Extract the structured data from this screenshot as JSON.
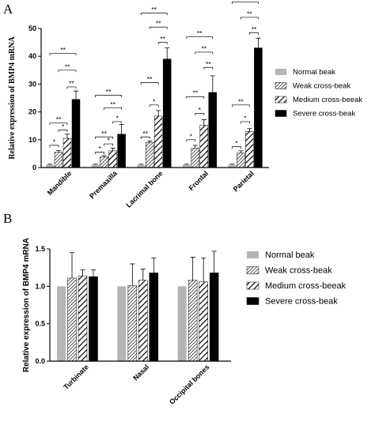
{
  "chart_data": [
    {
      "panel": "A",
      "type": "bar",
      "ylabel": "Relative expression of BMP4 mRNA",
      "ylim": [
        0,
        50
      ],
      "yticks": [
        0,
        10,
        20,
        30,
        40,
        50
      ],
      "categories": [
        "Mandible",
        "Premaxilla",
        "Lacrimal bone",
        "Frontal",
        "Parietal"
      ],
      "series": [
        {
          "name": "Normal beak",
          "values": [
            1,
            1,
            1,
            1,
            1
          ],
          "errors": [
            0.2,
            0.2,
            0.2,
            0.2,
            0.2
          ],
          "color": "#b4b4b4",
          "pattern": "solid-gray"
        },
        {
          "name": "Weak cross-beak",
          "values": [
            5.5,
            3.8,
            9.0,
            7.0,
            5.2
          ],
          "errors": [
            0.6,
            0.5,
            0.5,
            1.0,
            0.8
          ],
          "color": "#000000",
          "pattern": "hatch-dense"
        },
        {
          "name": "Medium cross-beeak",
          "values": [
            10.5,
            6.0,
            18.5,
            15.2,
            13.0
          ],
          "errors": [
            1.5,
            1.0,
            2.0,
            2.0,
            1.0
          ],
          "color": "#000000",
          "pattern": "hatch-wide"
        },
        {
          "name": "Severe cross-beak",
          "values": [
            24.5,
            12.0,
            39.0,
            27.0,
            43.0
          ],
          "errors": [
            3.0,
            3.5,
            4.0,
            6.0,
            3.5
          ],
          "color": "#000000",
          "pattern": "solid-black"
        }
      ],
      "significance": [
        {
          "cat": 0,
          "from": 0,
          "to": 1,
          "label": "*",
          "y": 8.0
        },
        {
          "cat": 0,
          "from": 1,
          "to": 2,
          "label": "*",
          "y": 13.5
        },
        {
          "cat": 0,
          "from": 0,
          "to": 2,
          "label": "**",
          "y": 16.0
        },
        {
          "cat": 0,
          "from": 2,
          "to": 3,
          "label": "**",
          "y": 29.0
        },
        {
          "cat": 0,
          "from": 1,
          "to": 3,
          "label": "**",
          "y": 35.0
        },
        {
          "cat": 0,
          "from": 0,
          "to": 3,
          "label": "**",
          "y": 41.0
        },
        {
          "cat": 1,
          "from": 0,
          "to": 1,
          "label": "*",
          "y": 5.5
        },
        {
          "cat": 1,
          "from": 1,
          "to": 2,
          "label": "*",
          "y": 8.5
        },
        {
          "cat": 1,
          "from": 0,
          "to": 2,
          "label": "**",
          "y": 11.0
        },
        {
          "cat": 1,
          "from": 2,
          "to": 3,
          "label": "*",
          "y": 16.5
        },
        {
          "cat": 1,
          "from": 1,
          "to": 3,
          "label": "**",
          "y": 21.5
        },
        {
          "cat": 1,
          "from": 0,
          "to": 3,
          "label": "**",
          "y": 26.0
        },
        {
          "cat": 2,
          "from": 0,
          "to": 1,
          "label": "**",
          "y": 11.0
        },
        {
          "cat": 2,
          "from": 1,
          "to": 2,
          "label": "*",
          "y": 22.5
        },
        {
          "cat": 2,
          "from": 0,
          "to": 2,
          "label": "**",
          "y": 30.5
        },
        {
          "cat": 2,
          "from": 2,
          "to": 3,
          "label": "**",
          "y": 45.0
        },
        {
          "cat": 2,
          "from": 1,
          "to": 3,
          "label": "**",
          "y": 50.5
        },
        {
          "cat": 2,
          "from": 0,
          "to": 3,
          "label": "**",
          "y": 55.5
        },
        {
          "cat": 3,
          "from": 0,
          "to": 1,
          "label": "*",
          "y": 10.0
        },
        {
          "cat": 3,
          "from": 1,
          "to": 2,
          "label": "*",
          "y": 19.5
        },
        {
          "cat": 3,
          "from": 0,
          "to": 2,
          "label": "**",
          "y": 25.5
        },
        {
          "cat": 3,
          "from": 2,
          "to": 3,
          "label": "**",
          "y": 36.0
        },
        {
          "cat": 3,
          "from": 1,
          "to": 3,
          "label": "**",
          "y": 41.5
        },
        {
          "cat": 3,
          "from": 0,
          "to": 3,
          "label": "**",
          "y": 47.0
        },
        {
          "cat": 4,
          "from": 0,
          "to": 1,
          "label": "*",
          "y": 7.5
        },
        {
          "cat": 4,
          "from": 1,
          "to": 2,
          "label": "*",
          "y": 16.5
        },
        {
          "cat": 4,
          "from": 0,
          "to": 2,
          "label": "**",
          "y": 22.5
        },
        {
          "cat": 4,
          "from": 2,
          "to": 3,
          "label": "**",
          "y": 48.5
        },
        {
          "cat": 4,
          "from": 1,
          "to": 3,
          "label": "**",
          "y": 54.0
        },
        {
          "cat": 4,
          "from": 0,
          "to": 3,
          "label": "**",
          "y": 59.5
        }
      ],
      "legend_position": "right"
    },
    {
      "panel": "B",
      "type": "bar",
      "ylabel": "Relative expression of BMP4 mRNA",
      "ylim": [
        0,
        1.5
      ],
      "yticks": [
        0.0,
        0.5,
        1.0,
        1.5
      ],
      "categories": [
        "Turbinate",
        "Nasal",
        "Occipital bones"
      ],
      "series": [
        {
          "name": "Normal beak",
          "values": [
            1.0,
            1.0,
            1.0
          ],
          "errors": [
            0,
            0,
            0
          ],
          "color": "#b4b4b4",
          "pattern": "solid-gray"
        },
        {
          "name": "Weak cross-beak",
          "values": [
            1.11,
            1.01,
            1.08
          ],
          "errors": [
            0.34,
            0.29,
            0.31
          ],
          "color": "#000000",
          "pattern": "hatch-dense"
        },
        {
          "name": "Medium cross-beeak",
          "values": [
            1.14,
            1.08,
            1.06
          ],
          "errors": [
            0.08,
            0.15,
            0.32
          ],
          "color": "#000000",
          "pattern": "hatch-wide"
        },
        {
          "name": "Severe cross-beak",
          "values": [
            1.13,
            1.18,
            1.18
          ],
          "errors": [
            0.09,
            0.2,
            0.29
          ],
          "color": "#000000",
          "pattern": "solid-black"
        }
      ],
      "legend_position": "right"
    }
  ]
}
